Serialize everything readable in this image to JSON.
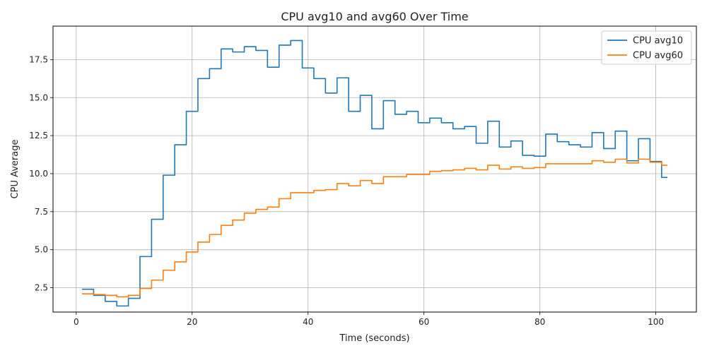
{
  "chart_data": {
    "type": "line",
    "title": "CPU avg10 and avg60 Over Time",
    "xlabel": "Time (seconds)",
    "ylabel": "CPU Average",
    "xlim": [
      -4,
      107
    ],
    "ylim": [
      0.9,
      19.7
    ],
    "xticks": [
      0,
      20,
      40,
      60,
      80,
      100
    ],
    "yticks": [
      2.5,
      5.0,
      7.5,
      10.0,
      12.5,
      15.0,
      17.5
    ],
    "ytick_labels": [
      "2.5",
      "5.0",
      "7.5",
      "10.0",
      "12.5",
      "15.0",
      "17.5"
    ],
    "grid": true,
    "legend_position": "top-right",
    "x": [
      1,
      2,
      3,
      4,
      5,
      6,
      7,
      8,
      9,
      10,
      11,
      12,
      13,
      14,
      15,
      16,
      17,
      18,
      19,
      20,
      21,
      22,
      23,
      24,
      25,
      26,
      27,
      28,
      29,
      30,
      31,
      32,
      33,
      34,
      35,
      36,
      37,
      38,
      39,
      40,
      41,
      42,
      43,
      44,
      45,
      46,
      47,
      48,
      49,
      50,
      51,
      52,
      53,
      54,
      55,
      56,
      57,
      58,
      59,
      60,
      61,
      62,
      63,
      64,
      65,
      66,
      67,
      68,
      69,
      70,
      71,
      72,
      73,
      74,
      75,
      76,
      77,
      78,
      79,
      80,
      81,
      82,
      83,
      84,
      85,
      86,
      87,
      88,
      89,
      90,
      91,
      92,
      93,
      94,
      95,
      96,
      97,
      98,
      99,
      100,
      101,
      102
    ],
    "series": [
      {
        "name": "CPU avg10",
        "color": "#1f77b4",
        "values": [
          2.4,
          2.4,
          2.0,
          2.0,
          1.6,
          1.6,
          1.3,
          1.3,
          1.8,
          1.8,
          4.55,
          4.55,
          7.0,
          7.0,
          9.9,
          9.9,
          11.9,
          11.9,
          14.1,
          14.1,
          16.25,
          16.25,
          16.9,
          16.9,
          18.2,
          18.2,
          18.0,
          18.0,
          18.35,
          18.35,
          18.1,
          18.1,
          17.0,
          17.0,
          18.45,
          18.45,
          18.75,
          18.75,
          16.95,
          16.95,
          16.25,
          16.25,
          15.3,
          15.3,
          16.3,
          16.3,
          14.1,
          14.1,
          15.15,
          15.15,
          12.95,
          12.95,
          14.8,
          14.8,
          13.9,
          13.9,
          14.1,
          14.1,
          13.35,
          13.35,
          13.65,
          13.65,
          13.35,
          13.35,
          12.95,
          12.95,
          13.1,
          13.1,
          12.0,
          12.0,
          13.45,
          13.45,
          11.75,
          11.75,
          12.15,
          12.15,
          11.2,
          11.2,
          11.15,
          11.15,
          12.6,
          12.6,
          12.1,
          12.1,
          11.9,
          11.9,
          11.75,
          11.75,
          12.7,
          12.7,
          11.65,
          11.65,
          12.8,
          12.8,
          10.85,
          10.85,
          12.3,
          12.3,
          10.8,
          10.8,
          9.75,
          9.75
        ]
      },
      {
        "name": "CPU avg60",
        "color": "#ff7f0e",
        "values": [
          2.1,
          2.1,
          2.05,
          2.05,
          2.0,
          2.0,
          1.9,
          1.9,
          2.0,
          2.0,
          2.45,
          2.45,
          3.0,
          3.0,
          3.65,
          3.65,
          4.2,
          4.2,
          4.85,
          4.85,
          5.5,
          5.5,
          6.0,
          6.0,
          6.6,
          6.6,
          6.95,
          6.95,
          7.4,
          7.4,
          7.65,
          7.65,
          7.8,
          7.8,
          8.35,
          8.35,
          8.75,
          8.75,
          8.75,
          8.75,
          8.9,
          8.9,
          8.95,
          8.95,
          9.35,
          9.35,
          9.2,
          9.2,
          9.55,
          9.55,
          9.35,
          9.35,
          9.8,
          9.8,
          9.8,
          9.8,
          9.95,
          9.95,
          9.95,
          9.95,
          10.15,
          10.15,
          10.2,
          10.2,
          10.25,
          10.25,
          10.35,
          10.35,
          10.25,
          10.25,
          10.55,
          10.55,
          10.3,
          10.3,
          10.45,
          10.45,
          10.35,
          10.35,
          10.4,
          10.4,
          10.65,
          10.65,
          10.65,
          10.65,
          10.65,
          10.65,
          10.65,
          10.65,
          10.85,
          10.85,
          10.75,
          10.75,
          10.95,
          10.95,
          10.7,
          10.7,
          10.95,
          10.95,
          10.75,
          10.75,
          10.55,
          10.55
        ]
      }
    ]
  }
}
